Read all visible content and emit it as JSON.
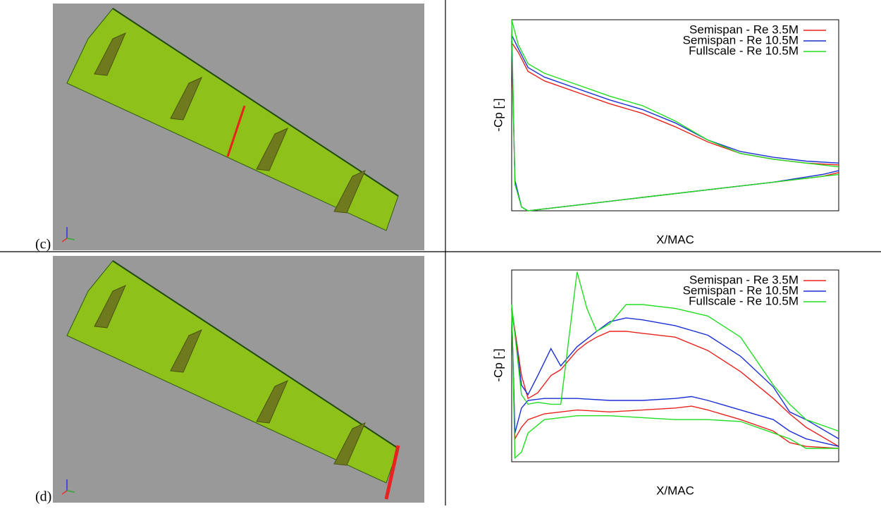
{
  "panel_labels": [
    "(c)",
    "(d)"
  ],
  "chart_data": [
    {
      "type": "line",
      "ylabel": "-Cp [-]",
      "xlabel": "X/MAC",
      "xlim": [
        0,
        1
      ],
      "ylim": [
        0,
        1
      ],
      "x": [
        1,
        0.9,
        0.8,
        0.7,
        0.6,
        0.5,
        0.4,
        0.3,
        0.2,
        0.1,
        0.05,
        0.02,
        0,
        0.01,
        0.03,
        0.05,
        0.1,
        0.2,
        0.4,
        0.6,
        0.8,
        0.95,
        1
      ],
      "series": [
        {
          "name": "Semispan - Re 3.5M",
          "color": "#e8221e",
          "values": [
            0.24,
            0.25,
            0.27,
            0.3,
            0.36,
            0.44,
            0.51,
            0.56,
            0.62,
            0.68,
            0.73,
            0.83,
            0.88,
            0.15,
            0.02,
            0,
            0.01,
            0.03,
            0.07,
            0.11,
            0.15,
            0.18,
            0.2
          ]
        },
        {
          "name": "Semispan - Re 10.5M",
          "color": "#1b2fd6",
          "values": [
            0.25,
            0.26,
            0.28,
            0.31,
            0.37,
            0.46,
            0.53,
            0.58,
            0.64,
            0.7,
            0.75,
            0.85,
            0.92,
            0.16,
            0.02,
            0,
            0.01,
            0.03,
            0.07,
            0.11,
            0.15,
            0.19,
            0.21
          ]
        },
        {
          "name": "Fullscale - Re 10.5M",
          "color": "#22dd22",
          "values": [
            0.23,
            0.25,
            0.27,
            0.3,
            0.37,
            0.47,
            0.55,
            0.6,
            0.66,
            0.72,
            0.77,
            0.87,
            1.0,
            0.14,
            0.02,
            0,
            0.01,
            0.03,
            0.07,
            0.11,
            0.15,
            0.18,
            0.19
          ]
        }
      ]
    },
    {
      "type": "line",
      "ylabel": "-Cp [-]",
      "xlabel": "X/MAC",
      "xlim": [
        0,
        1
      ],
      "ylim": [
        0,
        1
      ],
      "x": [
        1,
        0.9,
        0.85,
        0.8,
        0.7,
        0.6,
        0.5,
        0.4,
        0.35,
        0.3,
        0.26,
        0.23,
        0.2,
        0.15,
        0.12,
        0.08,
        0.05,
        0.03,
        0,
        0.01,
        0.03,
        0.05,
        0.1,
        0.2,
        0.3,
        0.4,
        0.5,
        0.55,
        0.6,
        0.7,
        0.8,
        0.85,
        0.9,
        1
      ],
      "series": [
        {
          "name": "Semispan - Re 3.5M",
          "color": "#e8221e",
          "values": [
            0.08,
            0.18,
            0.25,
            0.33,
            0.47,
            0.58,
            0.65,
            0.67,
            0.68,
            0.68,
            0.65,
            0.62,
            0.58,
            0.48,
            0.45,
            0.36,
            0.33,
            0.45,
            0.8,
            0.12,
            0.18,
            0.22,
            0.25,
            0.27,
            0.26,
            0.27,
            0.28,
            0.29,
            0.27,
            0.22,
            0.16,
            0.1,
            0.08,
            0.07
          ]
        },
        {
          "name": "Semispan - Re 10.5M",
          "color": "#1b2fd6",
          "values": [
            0.12,
            0.22,
            0.26,
            0.39,
            0.55,
            0.66,
            0.71,
            0.74,
            0.75,
            0.73,
            0.68,
            0.64,
            0.6,
            0.5,
            0.59,
            0.45,
            0.35,
            0.4,
            0.8,
            0.15,
            0.28,
            0.32,
            0.33,
            0.33,
            0.32,
            0.32,
            0.33,
            0.34,
            0.32,
            0.27,
            0.22,
            0.16,
            0.12,
            0.08
          ]
        },
        {
          "name": "Fullscale - Re 10.5M",
          "color": "#22dd22",
          "values": [
            0.16,
            0.22,
            0.3,
            0.4,
            0.65,
            0.76,
            0.8,
            0.82,
            0.82,
            0.72,
            0.68,
            0.8,
            0.99,
            0.3,
            0.3,
            0.31,
            0.3,
            0.35,
            0.82,
            0.02,
            0.05,
            0.15,
            0.22,
            0.24,
            0.24,
            0.23,
            0.22,
            0.22,
            0.22,
            0.21,
            0.15,
            0.12,
            0.07,
            0.07
          ]
        }
      ]
    }
  ]
}
